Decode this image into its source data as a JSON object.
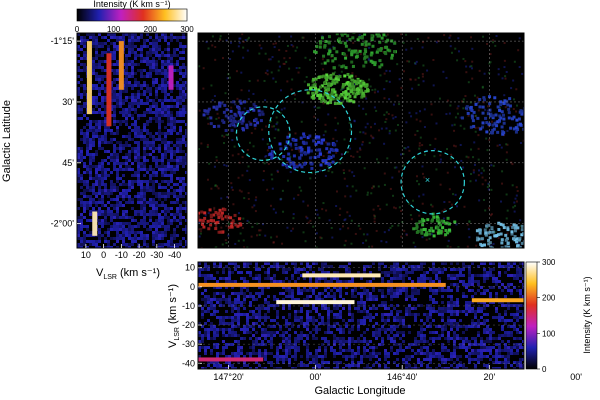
{
  "chart_data": [
    {
      "type": "heatmap",
      "panel": "latitude-velocity",
      "title": "Intensity (K km s⁻¹)",
      "xlabel": "V",
      "xlabel_sub": "LSR",
      "xlabel_unit": "(km s⁻¹)",
      "ylabel": "Galactic Latitude",
      "xlim": [
        15,
        -47
      ],
      "x_ticks": [
        -40,
        -30,
        -20,
        -10,
        0,
        10
      ],
      "x_tick_labels": [
        "-40",
        "-30",
        "-20",
        "-10",
        "0",
        "10"
      ],
      "ylim_deg": [
        -1.2167,
        -2.1
      ],
      "y_ticks_deg": [
        -1.25,
        -1.5,
        -1.75,
        -2.0
      ],
      "y_tick_labels": [
        "-1°15'",
        "30'",
        "45'",
        "-2°00'"
      ],
      "colorbar": {
        "range": [
          0,
          300
        ],
        "ticks": [
          0,
          100,
          200,
          300
        ],
        "tick_labels": [
          "0",
          "100",
          "200",
          "300"
        ],
        "colormap": "black-blue-red-yellow-white"
      },
      "features": [
        {
          "v": 8,
          "lat_range": [
            -1.25,
            -1.55
          ],
          "intensity": 260
        },
        {
          "v": -10,
          "lat_range": [
            -1.25,
            -1.45
          ],
          "intensity": 220
        },
        {
          "v": -3,
          "lat_range": [
            -1.3,
            -1.6
          ],
          "intensity": 180
        },
        {
          "v": 5,
          "lat_range": [
            -1.95,
            -2.05
          ],
          "intensity": 280
        },
        {
          "v": -38,
          "lat_range": [
            -1.35,
            -1.45
          ],
          "intensity": 120
        }
      ]
    },
    {
      "type": "heatmap",
      "panel": "rgb-composite-map",
      "rgb_channels": [
        "blue",
        "red",
        "green"
      ],
      "circles": [
        {
          "l_center": 147.2,
          "b_center": -1.63,
          "radius_deg": 0.11
        },
        {
          "l_center": 147.02,
          "b_center": -1.62,
          "radius_deg": 0.17
        },
        {
          "l_center": 146.55,
          "b_center": -1.83,
          "radius_deg": 0.13
        }
      ],
      "marker": {
        "l": 146.57,
        "b": -1.82,
        "symbol": "x"
      }
    },
    {
      "type": "heatmap",
      "panel": "velocity-longitude",
      "xlabel": "Galactic Longitude",
      "ylabel": "V",
      "ylabel_sub": "LSR",
      "ylabel_unit": "(km s⁻¹)",
      "xlim_deg": [
        147.45,
        146.2
      ],
      "x_ticks_deg": [
        147.333,
        147.0,
        146.667,
        146.333,
        146.0
      ],
      "x_tick_labels": [
        "147°20'",
        "00'",
        "146°40'",
        "20'",
        "00'"
      ],
      "ylim": [
        -43,
        13
      ],
      "y_ticks": [
        10,
        0,
        -10,
        -20,
        -30,
        -40
      ],
      "y_tick_labels": [
        "10",
        "0",
        "-10",
        "-20",
        "-30",
        "-40"
      ],
      "colorbar": {
        "title": "Intensity (K km s⁻¹)",
        "range": [
          0,
          300
        ],
        "ticks": [
          0,
          100,
          200,
          300
        ],
        "tick_labels": [
          "0",
          "100",
          "200",
          "300"
        ]
      },
      "features": [
        {
          "v": 6,
          "l_range": [
            147.05,
            146.75
          ],
          "intensity": 280
        },
        {
          "v": 1,
          "l_range": [
            147.45,
            146.5
          ],
          "intensity": 220
        },
        {
          "v": -8,
          "l_range": [
            147.15,
            146.85
          ],
          "intensity": 290
        },
        {
          "v": -7,
          "l_range": [
            146.4,
            146.2
          ],
          "intensity": 230
        },
        {
          "v": -38,
          "l_range": [
            147.45,
            147.2
          ],
          "intensity": 150
        }
      ]
    }
  ]
}
